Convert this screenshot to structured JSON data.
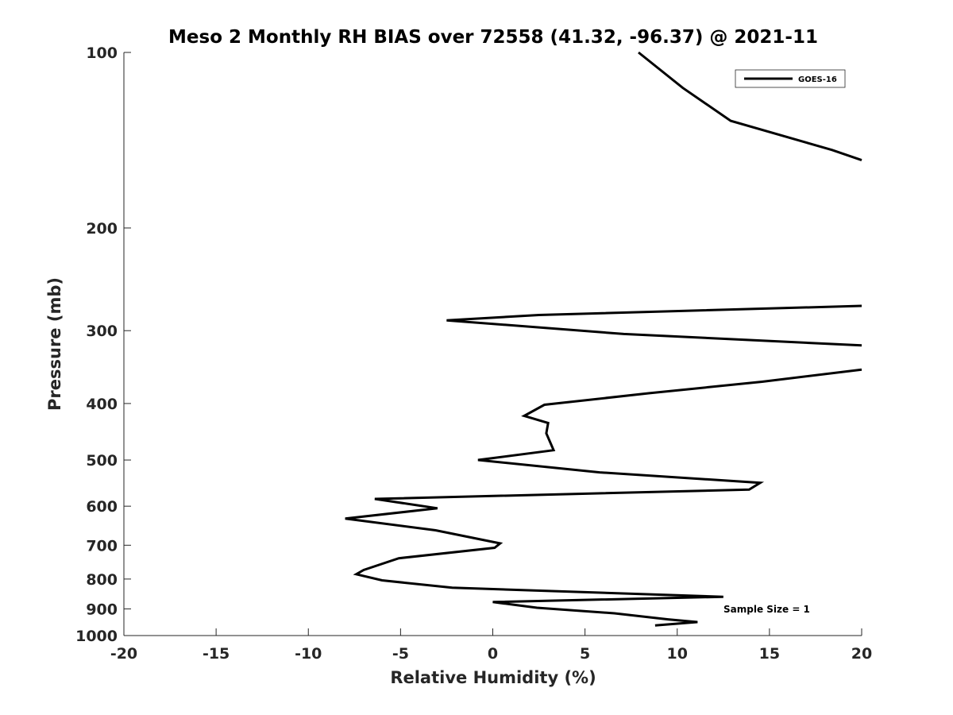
{
  "chart_data": {
    "type": "line",
    "title": "Meso 2 Monthly RH BIAS over 72558 (41.32, -96.37) @ 2021-11",
    "xlabel": "Relative Humidity (%)",
    "ylabel": "Pressure (mb)",
    "xlim": [
      -20,
      20
    ],
    "ylim": [
      100,
      1000
    ],
    "yscale": "log",
    "y_reversed": true,
    "grid": false,
    "legend_position": "top-right",
    "xticks": [
      "-20",
      "-15",
      "-10",
      "-5",
      "0",
      "5",
      "10",
      "15",
      "20"
    ],
    "yticks": [
      "100",
      "200",
      "300",
      "400",
      "500",
      "600",
      "700",
      "800",
      "900",
      "1000"
    ],
    "annotation": "Sample Size = 1",
    "series": [
      {
        "name": "GOES-16",
        "color": "#000000",
        "x": [
          7.9,
          10.3,
          12.9,
          18.4,
          20,
          null,
          20,
          2.5,
          -2.5,
          7.1,
          20,
          null,
          20,
          14.6,
          8.5,
          2.8,
          1.7,
          3.0,
          2.9,
          3.3,
          -0.8,
          5.8,
          14.5,
          13.9,
          -6.4,
          -3.0,
          -8.0,
          -3.1,
          0.4,
          0.1,
          -5.1,
          -7.0,
          -7.4,
          -6.0,
          -2.2,
          12.5,
          0.0,
          2.4,
          6.6,
          9.5,
          11.1,
          8.8
        ],
        "y": [
          100,
          115,
          131,
          147,
          153,
          null,
          272,
          282,
          288,
          304,
          318,
          null,
          350,
          367,
          384,
          402,
          420,
          432,
          450,
          481,
          500,
          525,
          547,
          562,
          583,
          605,
          630,
          660,
          695,
          707,
          737,
          772,
          785,
          804,
          828,
          858,
          876,
          896,
          916,
          938,
          948,
          961
        ]
      }
    ]
  }
}
